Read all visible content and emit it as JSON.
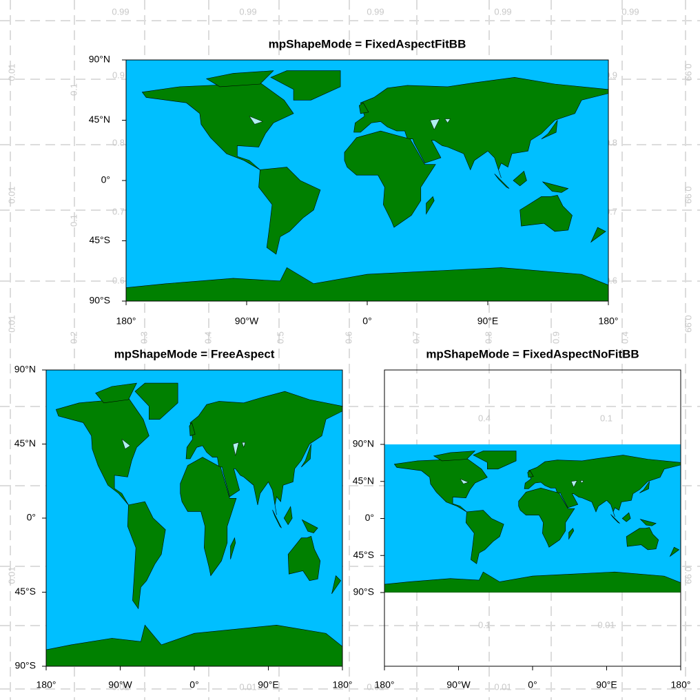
{
  "panels": [
    {
      "title": "mpShapeMode = FixedAspectFitBB",
      "lat_labels": [
        "90°N",
        "45°N",
        "0°",
        "45°S",
        "90°S"
      ],
      "lon_labels": [
        "180°",
        "90°W",
        "0°",
        "90°E",
        "180°"
      ]
    },
    {
      "title": "mpShapeMode = FreeAspect",
      "lat_labels": [
        "90°N",
        "45°N",
        "0°",
        "45°S",
        "90°S"
      ],
      "lon_labels": [
        "180°",
        "90°W",
        "0°",
        "90°E",
        "180°"
      ]
    },
    {
      "title": "mpShapeMode = FixedAspectNoFitBB",
      "lat_labels": [
        "90°N",
        "45°N",
        "0°",
        "45°S",
        "90°S"
      ],
      "lon_labels": [
        "180°",
        "90°W",
        "0°",
        "90°E",
        "180°"
      ]
    }
  ],
  "background_labels": [
    "0.99",
    "0.99",
    "0.99",
    "0.99",
    "0.99",
    "0.01",
    "0.01",
    "0.01",
    "0.01",
    "0.99",
    "0.99",
    "0.99",
    "0.99",
    "0.9",
    "0.8",
    "0.7",
    "0.6",
    "0.9",
    "0.8",
    "0.7",
    "0.6",
    "0.1",
    "0.1",
    "0.2",
    "0.3",
    "0.4",
    "0.5",
    "0.6",
    "0.7",
    "0.8",
    "0.9",
    "0.4",
    "0.4",
    "0.1",
    "0.1",
    "0.01",
    "0.01",
    "0.01",
    "0.01",
    "0.01"
  ]
}
